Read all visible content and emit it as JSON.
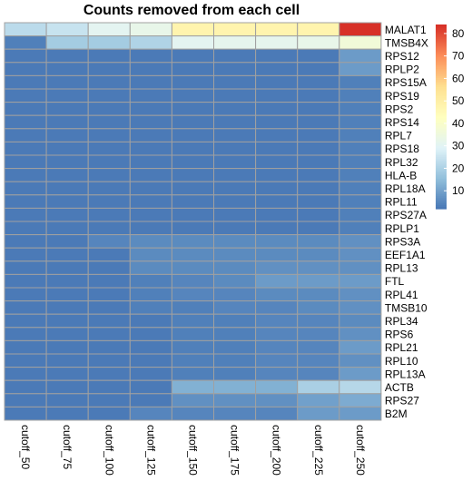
{
  "chart_data": {
    "type": "heatmap",
    "title": "Counts removed from each cell",
    "columns": [
      "cutoff_50",
      "cutoff_75",
      "cutoff_100",
      "cutoff_125",
      "cutoff_150",
      "cutoff_175",
      "cutoff_200",
      "cutoff_225",
      "cutoff_250"
    ],
    "rows": [
      "MALAT1",
      "TMSB4X",
      "RPS12",
      "RPLP2",
      "RPS15A",
      "RPS19",
      "RPS2",
      "RPS14",
      "RPL7",
      "RPS18",
      "RPL32",
      "HLA-B",
      "RPL18A",
      "RPL11",
      "RPS27A",
      "RPLP1",
      "RPS3A",
      "EEF1A1",
      "RPL13",
      "FTL",
      "RPL41",
      "TMSB10",
      "RPL34",
      "RPS6",
      "RPL21",
      "RPL10",
      "RPL13A",
      "ACTB",
      "RPS27",
      "B2M"
    ],
    "values": [
      [
        23,
        25,
        31,
        33,
        48,
        48,
        48,
        48,
        84
      ],
      [
        4,
        19,
        19,
        21,
        31,
        32,
        32,
        33,
        37
      ],
      [
        3,
        3,
        3,
        3,
        3,
        3,
        3,
        3,
        9
      ],
      [
        3,
        3,
        3,
        3,
        3,
        3,
        3,
        3,
        9
      ],
      [
        3,
        3,
        3,
        3,
        3,
        3,
        3,
        3,
        4
      ],
      [
        3,
        3,
        3,
        3,
        3,
        3,
        3,
        3,
        4
      ],
      [
        3,
        3,
        3,
        3,
        3,
        3,
        3,
        3,
        4
      ],
      [
        3,
        3,
        3,
        3,
        3,
        3,
        3,
        3,
        4
      ],
      [
        3,
        3,
        3,
        3,
        3,
        3,
        3,
        3,
        4
      ],
      [
        3,
        3,
        3,
        3,
        3,
        3,
        3,
        3,
        4
      ],
      [
        3,
        3,
        3,
        3,
        3,
        3,
        3,
        3,
        4
      ],
      [
        3,
        3,
        3,
        3,
        3,
        3,
        3,
        3,
        4
      ],
      [
        3,
        3,
        3,
        3,
        3,
        3,
        3,
        3,
        4
      ],
      [
        3,
        3,
        3,
        3,
        3,
        3,
        3,
        3,
        4
      ],
      [
        3,
        3,
        3,
        3,
        3,
        3,
        3,
        3,
        4
      ],
      [
        3,
        3,
        3,
        3,
        3,
        3,
        3,
        3,
        4
      ],
      [
        3,
        3,
        5,
        6,
        6,
        6,
        6,
        6,
        7
      ],
      [
        3,
        3,
        3,
        6,
        6,
        6,
        6,
        6,
        7
      ],
      [
        3,
        3,
        3,
        6,
        6,
        6,
        7,
        7,
        7
      ],
      [
        3,
        3,
        3,
        4,
        5,
        6,
        9,
        9,
        9
      ],
      [
        3,
        3,
        3,
        4,
        5,
        5,
        6,
        6,
        7
      ],
      [
        3,
        3,
        3,
        4,
        4,
        5,
        5,
        6,
        7
      ],
      [
        3,
        3,
        3,
        3,
        4,
        4,
        5,
        5,
        6
      ],
      [
        3,
        3,
        3,
        3,
        4,
        4,
        5,
        5,
        7
      ],
      [
        3,
        3,
        3,
        3,
        4,
        4,
        5,
        5,
        9
      ],
      [
        3,
        3,
        3,
        3,
        4,
        4,
        5,
        5,
        7
      ],
      [
        3,
        3,
        3,
        3,
        4,
        4,
        5,
        5,
        9
      ],
      [
        3,
        3,
        3,
        3,
        13,
        13,
        13,
        20,
        22
      ],
      [
        3,
        3,
        3,
        3,
        7,
        7,
        7,
        10,
        12
      ],
      [
        3,
        3,
        3,
        5,
        5,
        5,
        5,
        9,
        9
      ]
    ],
    "legend_ticks": [
      10,
      20,
      30,
      40,
      50,
      60,
      70,
      80
    ],
    "value_range": [
      2,
      84
    ],
    "palette": [
      "#4575B4",
      "#91BFDB",
      "#E0F3F8",
      "#FFFFBF",
      "#FEE090",
      "#FC8D59",
      "#D73027"
    ],
    "cell_border_color": "#A0A0A0"
  }
}
